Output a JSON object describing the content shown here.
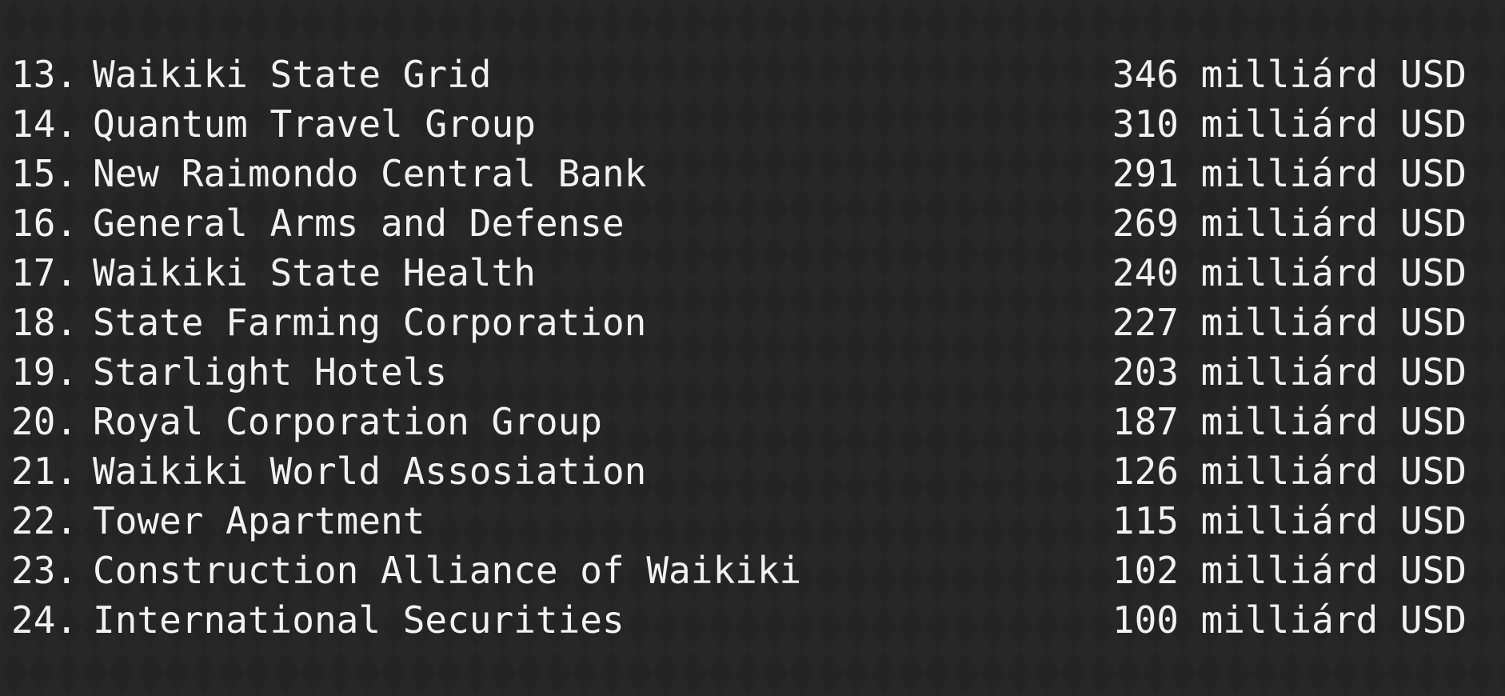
{
  "ranking": {
    "rows": [
      {
        "rank": "13.",
        "name": "Waikiki State Grid",
        "value": "346 milliárd USD"
      },
      {
        "rank": "14.",
        "name": "Quantum Travel Group",
        "value": "310 milliárd USD"
      },
      {
        "rank": "15.",
        "name": "New Raimondo Central Bank",
        "value": "291 milliárd USD"
      },
      {
        "rank": "16.",
        "name": "General Arms and Defense",
        "value": "269 milliárd USD"
      },
      {
        "rank": "17.",
        "name": "Waikiki State Health",
        "value": "240 milliárd USD"
      },
      {
        "rank": "18.",
        "name": "State Farming Corporation",
        "value": "227 milliárd USD"
      },
      {
        "rank": "19.",
        "name": "Starlight Hotels",
        "value": "203 milliárd USD"
      },
      {
        "rank": "20.",
        "name": "Royal Corporation Group",
        "value": "187 milliárd USD"
      },
      {
        "rank": "21.",
        "name": "Waikiki World Assosiation",
        "value": "126 milliárd USD"
      },
      {
        "rank": "22.",
        "name": "Tower Apartment",
        "value": "115 milliárd USD"
      },
      {
        "rank": "23.",
        "name": "Construction Alliance of Waikiki",
        "value": "102 milliárd USD"
      },
      {
        "rank": "24.",
        "name": "International Securities",
        "value": "100 milliárd USD"
      }
    ]
  }
}
